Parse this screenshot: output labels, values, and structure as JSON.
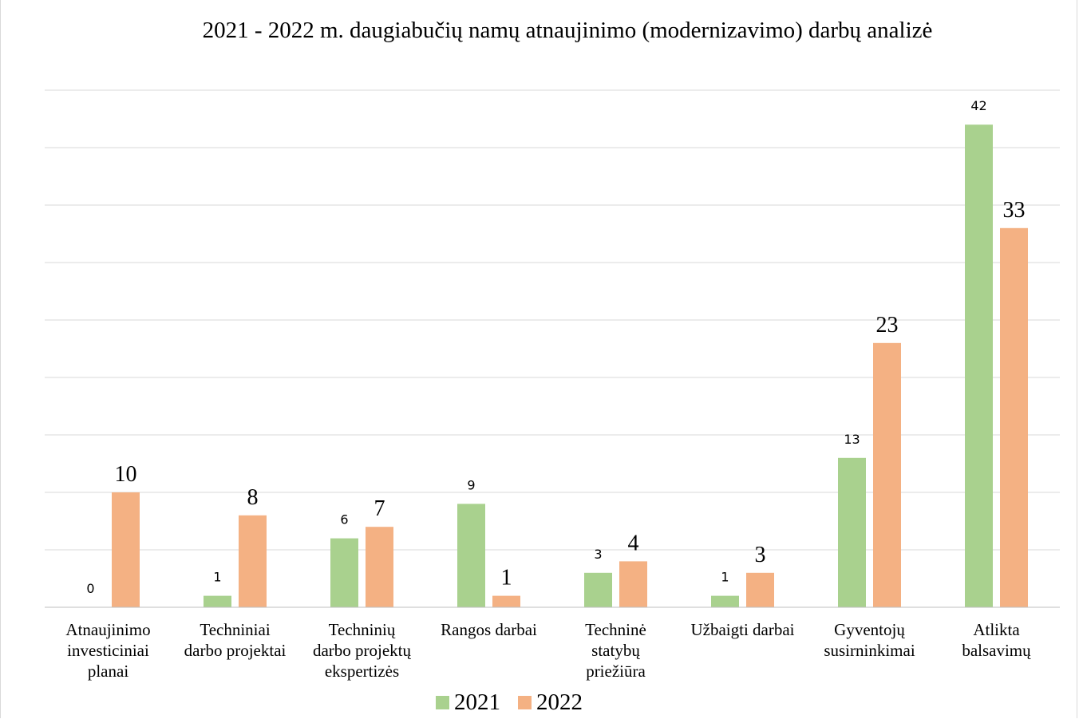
{
  "chart_data": {
    "type": "bar",
    "title": "2021 - 2022 m. daugiabučių namų atnaujinimo (modernizavimo) darbų analizė",
    "xlabel": "",
    "ylabel": "",
    "ylim": [
      0,
      45
    ],
    "grid": true,
    "legend_position": "bottom",
    "categories": [
      [
        "Atnaujinimo",
        "investiciniai",
        "planai"
      ],
      [
        "Techniniai",
        "darbo projektai"
      ],
      [
        "Techninių",
        "darbo projektų",
        "ekspertizės"
      ],
      [
        "Rangos darbai"
      ],
      [
        "Techninė",
        "statybų",
        "priežiūra"
      ],
      [
        "Užbaigti darbai"
      ],
      [
        "Gyventojų",
        "susirninkimai"
      ],
      [
        "Atlikta",
        "balsavimų"
      ]
    ],
    "series": [
      {
        "name": "2021",
        "color": "#a9d18e",
        "values": [
          0,
          1,
          6,
          9,
          3,
          1,
          13,
          42
        ]
      },
      {
        "name": "2022",
        "color": "#f4b183",
        "values": [
          10,
          8,
          7,
          1,
          4,
          3,
          23,
          33
        ]
      }
    ]
  }
}
